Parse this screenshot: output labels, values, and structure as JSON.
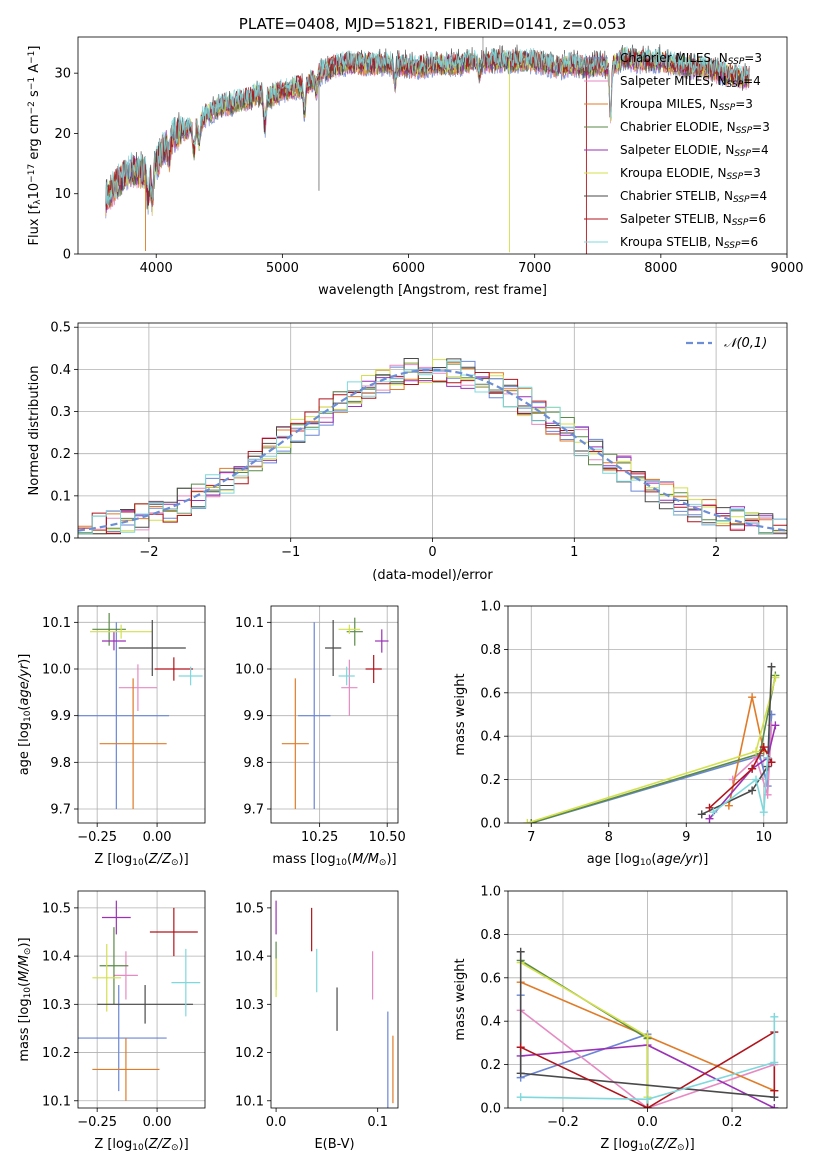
{
  "chart_data": [
    {
      "id": "spectrum",
      "type": "line",
      "title": "PLATE=0408, MJD=51821, FIBERID=0141, z=0.053",
      "xlabel": "wavelength [Angstrom, rest frame]",
      "ylabel_parts": [
        "Flux [f",
        "λ",
        "10",
        "−17",
        " erg cm",
        "−2",
        " s",
        "−1",
        " A",
        "−1",
        "]"
      ],
      "xlim": [
        3380,
        9000
      ],
      "ylim": [
        0,
        36
      ],
      "xticks": [
        4000,
        5000,
        6000,
        7000,
        8000,
        9000
      ],
      "yticks": [
        0,
        10,
        20,
        30
      ],
      "grid": false,
      "legend_position": "upper-right",
      "legend": [
        {
          "label": "Chabrier MILES, N",
          "sub": "SSP",
          "tail": "=3",
          "color": "#6b86d6"
        },
        {
          "label": "Salpeter MILES, N",
          "sub": "SSP",
          "tail": "=4",
          "color": "#e68ac3"
        },
        {
          "label": "Kroupa MILES, N",
          "sub": "SSP",
          "tail": "=3",
          "color": "#e07b28"
        },
        {
          "label": "Chabrier ELODIE, N",
          "sub": "SSP",
          "tail": "=3",
          "color": "#5a8a47"
        },
        {
          "label": "Salpeter ELODIE, N",
          "sub": "SSP",
          "tail": "=4",
          "color": "#9b31b5"
        },
        {
          "label": "Kroupa ELODIE, N",
          "sub": "SSP",
          "tail": "=3",
          "color": "#d3e04d"
        },
        {
          "label": "Chabrier STELIB, N",
          "sub": "SSP",
          "tail": "=4",
          "color": "#4a4a4a"
        },
        {
          "label": "Salpeter STELIB, N",
          "sub": "SSP",
          "tail": "=6",
          "color": "#b0141c"
        },
        {
          "label": "Kroupa STELIB, N",
          "sub": "SSP",
          "tail": "=6",
          "color": "#7fd8dc"
        }
      ],
      "continuum": [
        [
          3600,
          9
        ],
        [
          3700,
          12
        ],
        [
          3800,
          14
        ],
        [
          3900,
          13.5
        ],
        [
          3950,
          13
        ],
        [
          4000,
          15
        ],
        [
          4100,
          19
        ],
        [
          4200,
          20.5
        ],
        [
          4300,
          21
        ],
        [
          4400,
          23
        ],
        [
          4500,
          24.5
        ],
        [
          4600,
          25
        ],
        [
          4700,
          25.5
        ],
        [
          4800,
          26.5
        ],
        [
          4900,
          26
        ],
        [
          5000,
          27
        ],
        [
          5100,
          27.5
        ],
        [
          5200,
          28
        ],
        [
          5300,
          30
        ],
        [
          5400,
          31
        ],
        [
          5500,
          31.5
        ],
        [
          5600,
          31.5
        ],
        [
          5700,
          31.5
        ],
        [
          5800,
          31.5
        ],
        [
          5900,
          31.5
        ],
        [
          6000,
          31
        ],
        [
          6100,
          31
        ],
        [
          6200,
          31.5
        ],
        [
          6300,
          31.5
        ],
        [
          6400,
          31.5
        ],
        [
          6500,
          32
        ],
        [
          6600,
          32
        ],
        [
          6700,
          32
        ],
        [
          6800,
          32
        ],
        [
          6900,
          32
        ],
        [
          7000,
          32
        ],
        [
          7100,
          31.5
        ],
        [
          7200,
          31
        ],
        [
          7300,
          31.5
        ],
        [
          7400,
          31
        ],
        [
          7500,
          31.5
        ],
        [
          7600,
          31
        ],
        [
          7700,
          32.5
        ],
        [
          7800,
          32
        ],
        [
          7900,
          32
        ],
        [
          8000,
          32
        ],
        [
          8100,
          31.5
        ],
        [
          8200,
          31
        ],
        [
          8300,
          31
        ],
        [
          8400,
          30.5
        ],
        [
          8500,
          30
        ],
        [
          8600,
          29.5
        ],
        [
          8700,
          29
        ]
      ],
      "absorption_lines": [
        [
          3934,
          4
        ],
        [
          3969,
          5
        ],
        [
          4102,
          3
        ],
        [
          4300,
          4
        ],
        [
          4340,
          3
        ],
        [
          4861,
          5
        ],
        [
          5175,
          4
        ],
        [
          5270,
          2
        ],
        [
          5893,
          3
        ],
        [
          6563,
          2
        ],
        [
          7600,
          8
        ]
      ],
      "spikes": [
        [
          5290,
          10.5,
          "#777777"
        ],
        [
          6800,
          0.3,
          "#d3e04d"
        ],
        [
          6590,
          38,
          "#999999"
        ],
        [
          7410,
          0,
          "#b0141c"
        ],
        [
          3915,
          0.5,
          "#e07b28"
        ]
      ]
    },
    {
      "id": "residuals",
      "type": "histogram",
      "xlabel": "(data-model)/error",
      "ylabel": "Normed distribution",
      "xlim": [
        -2.5,
        2.5
      ],
      "ylim": [
        0,
        0.51
      ],
      "xticks": [
        -2,
        -1,
        0,
        1,
        2
      ],
      "yticks": [
        0.0,
        0.1,
        0.2,
        0.3,
        0.4,
        0.5
      ],
      "grid": true,
      "legend_position": "upper-right",
      "gauss_label": "𝒩(0,1)",
      "gauss_color": "#6b8ed6",
      "bins": [
        -2.5,
        -2.4,
        -2.3,
        -2.2,
        -2.1,
        -2.0,
        -1.9,
        -1.8,
        -1.7,
        -1.6,
        -1.5,
        -1.4,
        -1.3,
        -1.2,
        -1.1,
        -1.0,
        -0.9,
        -0.8,
        -0.7,
        -0.6,
        -0.5,
        -0.4,
        -0.3,
        -0.2,
        -0.1,
        0.0,
        0.1,
        0.2,
        0.3,
        0.4,
        0.5,
        0.6,
        0.7,
        0.8,
        0.9,
        1.0,
        1.1,
        1.2,
        1.3,
        1.4,
        1.5,
        1.6,
        1.7,
        1.8,
        1.9,
        2.0,
        2.1,
        2.2,
        2.3,
        2.4,
        2.5
      ],
      "series_colors": [
        "#6b86d6",
        "#e68ac3",
        "#e07b28",
        "#5a8a47",
        "#9b31b5",
        "#d3e04d",
        "#4a4a4a",
        "#b0141c",
        "#7fd8dc"
      ]
    },
    {
      "id": "age-z",
      "type": "errorbar",
      "xlabel": "Z [log10(Z/Z⊙)]",
      "ylabel": "age  [log10(age/yr)]",
      "xlim": [
        -0.33,
        0.2
      ],
      "ylim": [
        9.67,
        10.135
      ],
      "xticks": [
        -0.25,
        0.0
      ],
      "yticks": [
        9.7,
        9.8,
        9.9,
        10.0,
        10.1
      ],
      "grid": true,
      "points": [
        {
          "x": -0.17,
          "y": 9.9,
          "xerr": 0.22,
          "yerr": 0.2,
          "color": "#6b86d6"
        },
        {
          "x": -0.08,
          "y": 9.96,
          "xerr": 0.08,
          "yerr": 0.05,
          "color": "#e68ac3"
        },
        {
          "x": -0.1,
          "y": 9.84,
          "xerr": 0.14,
          "yerr": 0.14,
          "color": "#e07b28"
        },
        {
          "x": -0.2,
          "y": 10.085,
          "xerr": 0.07,
          "yerr": 0.035,
          "color": "#5a8a47"
        },
        {
          "x": -0.18,
          "y": 10.06,
          "xerr": 0.05,
          "yerr": 0.02,
          "color": "#9b31b5"
        },
        {
          "x": -0.15,
          "y": 10.08,
          "xerr": 0.13,
          "yerr": 0.015,
          "color": "#d3e04d"
        },
        {
          "x": -0.02,
          "y": 10.045,
          "xerr": 0.14,
          "yerr": 0.06,
          "color": "#4a4a4a"
        },
        {
          "x": 0.07,
          "y": 10.0,
          "xerr": 0.08,
          "yerr": 0.025,
          "color": "#b0141c"
        },
        {
          "x": 0.14,
          "y": 9.985,
          "xerr": 0.05,
          "yerr": 0.02,
          "color": "#7fd8dc"
        }
      ]
    },
    {
      "id": "age-mass",
      "type": "errorbar",
      "xlabel": "mass [log10(M/M⊙)]",
      "xlim": [
        10.07,
        10.54
      ],
      "ylim": [
        9.67,
        10.135
      ],
      "xticks": [
        10.25,
        10.5
      ],
      "yticks": [
        9.7,
        9.8,
        9.9,
        10.0,
        10.1
      ],
      "grid": true,
      "points": [
        {
          "x": 10.23,
          "y": 9.9,
          "xerr": 0.06,
          "yerr": 0.2,
          "color": "#6b86d6"
        },
        {
          "x": 10.36,
          "y": 9.96,
          "xerr": 0.03,
          "yerr": 0.06,
          "color": "#e68ac3"
        },
        {
          "x": 10.16,
          "y": 9.84,
          "xerr": 0.05,
          "yerr": 0.14,
          "color": "#e07b28"
        },
        {
          "x": 10.38,
          "y": 10.08,
          "xerr": 0.03,
          "yerr": 0.03,
          "color": "#5a8a47"
        },
        {
          "x": 10.48,
          "y": 10.06,
          "xerr": 0.025,
          "yerr": 0.025,
          "color": "#9b31b5"
        },
        {
          "x": 10.36,
          "y": 10.085,
          "xerr": 0.04,
          "yerr": 0.01,
          "color": "#d3e04d"
        },
        {
          "x": 10.3,
          "y": 10.045,
          "xerr": 0.03,
          "yerr": 0.06,
          "color": "#4a4a4a"
        },
        {
          "x": 10.45,
          "y": 10.0,
          "xerr": 0.03,
          "yerr": 0.03,
          "color": "#b0141c"
        },
        {
          "x": 10.35,
          "y": 9.985,
          "xerr": 0.03,
          "yerr": 0.02,
          "color": "#7fd8dc"
        }
      ]
    },
    {
      "id": "mw-age",
      "type": "line",
      "xlabel": "age  [log10(age/yr)]",
      "ylabel": "mass weight",
      "xlim": [
        6.7,
        10.3
      ],
      "ylim": [
        0,
        1.0
      ],
      "xticks": [
        7,
        8,
        9,
        10
      ],
      "yticks": [
        0.0,
        0.2,
        0.4,
        0.6,
        0.8,
        1.0
      ],
      "grid": true,
      "series": [
        {
          "color": "#6b86d6",
          "x": [
            7.0,
            9.95,
            10.05,
            10.1
          ],
          "y": [
            0.0,
            0.31,
            0.17,
            0.5
          ]
        },
        {
          "color": "#e68ac3",
          "x": [
            9.6,
            9.9,
            10.05,
            10.1
          ],
          "y": [
            0.2,
            0.3,
            0.13,
            0.45
          ]
        },
        {
          "color": "#e07b28",
          "x": [
            9.55,
            9.85,
            10.0
          ],
          "y": [
            0.08,
            0.58,
            0.33
          ]
        },
        {
          "color": "#5a8a47",
          "x": [
            7.0,
            9.95,
            10.15
          ],
          "y": [
            0.0,
            0.32,
            0.68
          ]
        },
        {
          "color": "#9b31b5",
          "x": [
            9.3,
            9.85,
            10.05,
            10.15
          ],
          "y": [
            0.02,
            0.25,
            0.3,
            0.45
          ]
        },
        {
          "color": "#d3e04d",
          "x": [
            6.95,
            9.9,
            10.15
          ],
          "y": [
            0.0,
            0.33,
            0.67
          ]
        },
        {
          "color": "#4a4a4a",
          "x": [
            9.2,
            9.85,
            10.05,
            10.1
          ],
          "y": [
            0.04,
            0.15,
            0.26,
            0.72
          ]
        },
        {
          "color": "#b0141c",
          "x": [
            9.3,
            9.85,
            10.0,
            10.1
          ],
          "y": [
            0.07,
            0.25,
            0.35,
            0.28
          ]
        },
        {
          "color": "#7fd8dc",
          "x": [
            9.35,
            9.9,
            10.0,
            10.05
          ],
          "y": [
            0.05,
            0.2,
            0.05,
            0.3
          ]
        }
      ]
    },
    {
      "id": "mass-z",
      "type": "errorbar",
      "xlabel": "Z [log10(Z/Z⊙)]",
      "ylabel": "mass [log10(M/M⊙)]",
      "xlim": [
        -0.33,
        0.2
      ],
      "ylim": [
        10.085,
        10.535
      ],
      "xticks": [
        -0.25,
        0.0
      ],
      "yticks": [
        10.1,
        10.2,
        10.3,
        10.4,
        10.5
      ],
      "grid": true,
      "points": [
        {
          "x": -0.16,
          "y": 10.23,
          "xerr": 0.2,
          "yerr": 0.11,
          "color": "#6b86d6"
        },
        {
          "x": -0.13,
          "y": 10.36,
          "xerr": 0.05,
          "yerr": 0.05,
          "color": "#e68ac3"
        },
        {
          "x": -0.13,
          "y": 10.165,
          "xerr": 0.14,
          "yerr": 0.065,
          "color": "#e07b28"
        },
        {
          "x": -0.18,
          "y": 10.38,
          "xerr": 0.06,
          "yerr": 0.08,
          "color": "#5a8a47"
        },
        {
          "x": -0.17,
          "y": 10.48,
          "xerr": 0.06,
          "yerr": 0.035,
          "color": "#9b31b5"
        },
        {
          "x": -0.21,
          "y": 10.355,
          "xerr": 0.06,
          "yerr": 0.07,
          "color": "#d3e04d"
        },
        {
          "x": -0.05,
          "y": 10.3,
          "xerr": 0.2,
          "yerr": 0.04,
          "color": "#4a4a4a"
        },
        {
          "x": 0.07,
          "y": 10.45,
          "xerr": 0.1,
          "yerr": 0.05,
          "color": "#b0141c"
        },
        {
          "x": 0.12,
          "y": 10.345,
          "xerr": 0.06,
          "yerr": 0.07,
          "color": "#7fd8dc"
        }
      ]
    },
    {
      "id": "mass-ebv",
      "type": "errorbar",
      "xlabel": "E(B-V)",
      "xlim": [
        -0.005,
        0.12
      ],
      "ylim": [
        10.085,
        10.535
      ],
      "xticks": [
        0.0,
        0.1
      ],
      "yticks": [
        10.1,
        10.2,
        10.3,
        10.4,
        10.5
      ],
      "grid": false,
      "points": [
        {
          "x": 0.11,
          "y": 10.18,
          "xerr": 0,
          "yerr": 0.105,
          "color": "#6b86d6"
        },
        {
          "x": 0.095,
          "y": 10.36,
          "xerr": 0,
          "yerr": 0.05,
          "color": "#e68ac3"
        },
        {
          "x": 0.115,
          "y": 10.165,
          "xerr": 0,
          "yerr": 0.07,
          "color": "#e07b28"
        },
        {
          "x": 0.0,
          "y": 10.38,
          "xerr": 0,
          "yerr": 0.05,
          "color": "#5a8a47"
        },
        {
          "x": 0.0,
          "y": 10.48,
          "xerr": 0,
          "yerr": 0.035,
          "color": "#9b31b5"
        },
        {
          "x": 0.0,
          "y": 10.355,
          "xerr": 0,
          "yerr": 0.04,
          "color": "#d3e04d"
        },
        {
          "x": 0.06,
          "y": 10.29,
          "xerr": 0,
          "yerr": 0.045,
          "color": "#4a4a4a"
        },
        {
          "x": 0.035,
          "y": 10.455,
          "xerr": 0,
          "yerr": 0.045,
          "color": "#b0141c"
        },
        {
          "x": 0.04,
          "y": 10.37,
          "xerr": 0,
          "yerr": 0.045,
          "color": "#7fd8dc"
        }
      ]
    },
    {
      "id": "mw-z",
      "type": "line",
      "xlabel": "Z [log10(Z/Z⊙)]",
      "ylabel": "mass weight",
      "xlim": [
        -0.33,
        0.33
      ],
      "ylim": [
        0,
        1.0
      ],
      "xticks": [
        -0.2,
        0.0,
        0.2
      ],
      "yticks": [
        0.0,
        0.2,
        0.4,
        0.6,
        0.8,
        1.0
      ],
      "grid": true,
      "series": [
        {
          "color": "#6b86d6",
          "x": [
            -0.3,
            -0.3,
            0.0,
            0.0
          ],
          "y": [
            0.52,
            0.14,
            0.34,
            0.0
          ]
        },
        {
          "color": "#e68ac3",
          "x": [
            -0.3,
            0.0,
            0.3,
            0.3
          ],
          "y": [
            0.45,
            0.0,
            0.2,
            0.05
          ]
        },
        {
          "color": "#e07b28",
          "x": [
            -0.3,
            0.0,
            0.3
          ],
          "y": [
            0.58,
            0.33,
            0.08
          ]
        },
        {
          "color": "#5a8a47",
          "x": [
            -0.3,
            0.0,
            0.0
          ],
          "y": [
            0.68,
            0.32,
            0.0
          ]
        },
        {
          "color": "#9b31b5",
          "x": [
            -0.3,
            0.0,
            0.3
          ],
          "y": [
            0.24,
            0.29,
            0.0
          ]
        },
        {
          "color": "#d3e04d",
          "x": [
            -0.3,
            0.0,
            0.0
          ],
          "y": [
            0.67,
            0.33,
            0.05
          ]
        },
        {
          "color": "#4a4a4a",
          "x": [
            -0.3,
            -0.3,
            0.3
          ],
          "y": [
            0.72,
            0.16,
            0.05
          ]
        },
        {
          "color": "#b0141c",
          "x": [
            -0.3,
            0.0,
            0.3,
            0.3
          ],
          "y": [
            0.28,
            0.0,
            0.35,
            0.08
          ]
        },
        {
          "color": "#7fd8dc",
          "x": [
            -0.3,
            0.0,
            0.3,
            0.3
          ],
          "y": [
            0.05,
            0.04,
            0.21,
            0.42
          ]
        }
      ]
    }
  ]
}
